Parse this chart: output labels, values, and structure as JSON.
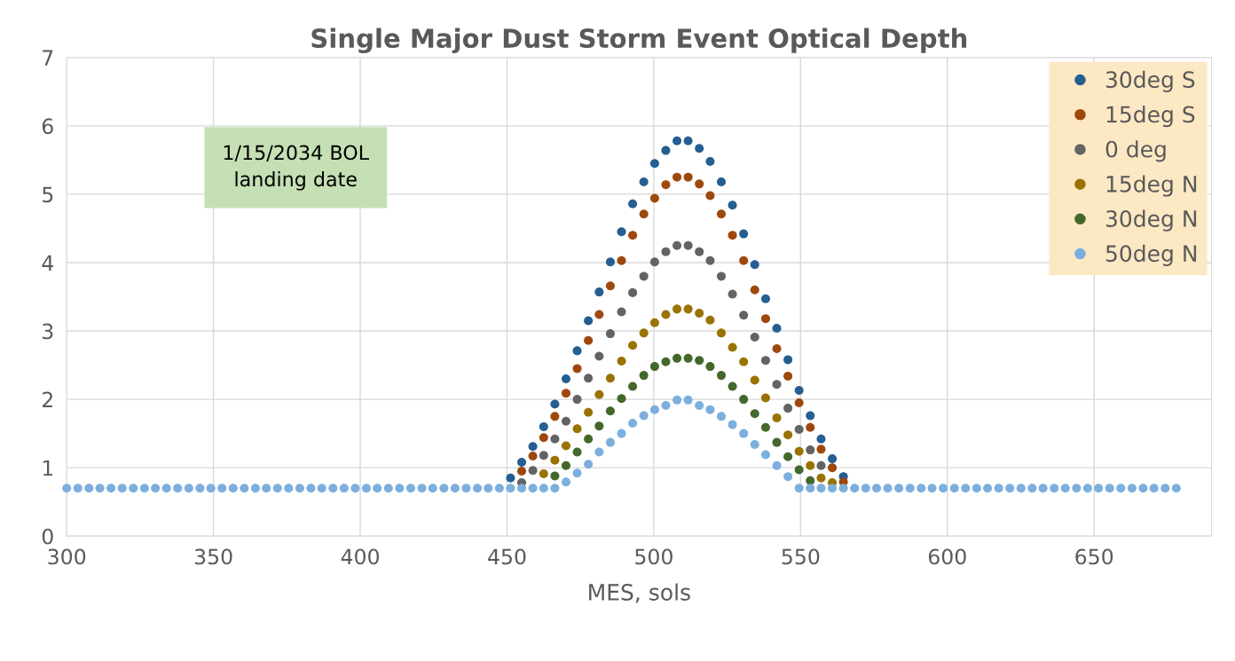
{
  "chart_data": {
    "type": "scatter",
    "title": "Single Major Dust Storm Event Optical Depth",
    "xlabel": "MES, sols",
    "annotations": [
      "1/15/2034 BOL\nlanding date"
    ],
    "x": [
      300,
      303.8,
      307.6,
      311.3,
      315.1,
      318.9,
      322.7,
      326.5,
      330.2,
      334,
      337.8,
      341.6,
      345.4,
      349.1,
      352.9,
      356.7,
      360.5,
      364.3,
      368,
      371.8,
      375.6,
      379.4,
      383.2,
      386.9,
      390.7,
      394.5,
      398.3,
      402.1,
      405.8,
      409.6,
      413.4,
      417.2,
      421,
      424.7,
      428.5,
      432.3,
      436.1,
      439.9,
      443.6,
      447.4,
      451.2,
      455,
      458.8,
      462.5,
      466.3,
      470.1,
      473.9,
      477.7,
      481.4,
      485.2,
      489,
      492.8,
      496.6,
      500.3,
      504.1,
      507.9,
      511.7,
      515.5,
      519.2,
      523,
      526.8,
      530.6,
      534.4,
      538.1,
      541.9,
      545.7,
      549.5,
      553.3,
      557,
      560.8,
      564.6,
      568.4,
      572.2,
      575.9,
      579.7,
      583.5,
      587.3,
      591.1,
      594.8,
      598.6,
      602.4,
      606.2,
      610,
      613.7,
      617.5,
      621.3,
      625.1,
      628.9,
      632.6,
      636.4,
      640.2,
      644,
      647.8,
      651.5,
      655.3,
      659.1,
      662.9,
      666.7,
      670.4,
      674.2,
      678
    ],
    "series": [
      {
        "name": "30deg S",
        "color": "#255e91",
        "values": [
          null,
          null,
          null,
          null,
          null,
          null,
          null,
          null,
          null,
          null,
          null,
          null,
          null,
          null,
          null,
          null,
          null,
          null,
          null,
          null,
          null,
          null,
          null,
          null,
          null,
          null,
          null,
          null,
          null,
          null,
          null,
          null,
          null,
          null,
          null,
          null,
          null,
          null,
          null,
          null,
          0.85,
          1.08,
          1.31,
          1.6,
          1.93,
          2.3,
          2.71,
          3.15,
          3.57,
          4.01,
          4.45,
          4.86,
          5.18,
          5.45,
          5.64,
          5.78,
          5.78,
          5.67,
          5.48,
          5.18,
          4.84,
          4.42,
          3.97,
          3.47,
          3.04,
          2.58,
          2.13,
          1.76,
          1.42,
          1.13,
          0.87,
          null,
          null,
          null,
          null,
          null,
          null,
          null,
          null,
          null,
          null,
          null,
          null,
          null,
          null,
          null,
          null,
          null,
          null,
          null,
          null,
          null,
          null,
          null,
          null,
          null,
          null,
          null,
          null,
          null,
          null
        ]
      },
      {
        "name": "15deg S",
        "color": "#9e480e",
        "values": [
          null,
          null,
          null,
          null,
          null,
          null,
          null,
          null,
          null,
          null,
          null,
          null,
          null,
          null,
          null,
          null,
          null,
          null,
          null,
          null,
          null,
          null,
          null,
          null,
          null,
          null,
          null,
          null,
          null,
          null,
          null,
          null,
          null,
          null,
          null,
          null,
          null,
          null,
          null,
          null,
          null,
          0.95,
          1.17,
          1.44,
          1.75,
          2.09,
          2.45,
          2.86,
          3.24,
          3.66,
          4.03,
          4.4,
          4.71,
          4.94,
          5.14,
          5.25,
          5.25,
          5.15,
          4.98,
          4.71,
          4.4,
          4.03,
          3.6,
          3.18,
          2.74,
          2.34,
          1.95,
          1.59,
          1.27,
          1.0,
          0.79,
          null,
          null,
          null,
          null,
          null,
          null,
          null,
          null,
          null,
          null,
          null,
          null,
          null,
          null,
          null,
          null,
          null,
          null,
          null,
          null,
          null,
          null,
          null,
          null,
          null,
          null,
          null,
          null,
          null,
          null
        ]
      },
      {
        "name": "0 deg",
        "color": "#636363",
        "values": [
          null,
          null,
          null,
          null,
          null,
          null,
          null,
          null,
          null,
          null,
          null,
          null,
          null,
          null,
          null,
          null,
          null,
          null,
          null,
          null,
          null,
          null,
          null,
          null,
          null,
          null,
          null,
          null,
          null,
          null,
          null,
          null,
          null,
          null,
          null,
          null,
          null,
          null,
          null,
          null,
          null,
          0.78,
          0.96,
          1.18,
          1.42,
          1.68,
          2.0,
          2.31,
          2.63,
          2.96,
          3.28,
          3.56,
          3.8,
          4.01,
          4.16,
          4.25,
          4.25,
          4.16,
          4.03,
          3.8,
          3.54,
          3.23,
          2.91,
          2.57,
          2.22,
          1.87,
          1.56,
          1.26,
          1.03,
          null,
          null,
          null,
          null,
          null,
          null,
          null,
          null,
          null,
          null,
          null,
          null,
          null,
          null,
          null,
          null,
          null,
          null,
          null,
          null,
          null,
          null,
          null,
          null,
          null,
          null,
          null,
          null,
          null,
          null,
          null,
          null
        ]
      },
      {
        "name": "15deg N",
        "color": "#997300",
        "values": [
          null,
          null,
          null,
          null,
          null,
          null,
          null,
          null,
          null,
          null,
          null,
          null,
          null,
          null,
          null,
          null,
          null,
          null,
          null,
          null,
          null,
          null,
          null,
          null,
          null,
          null,
          null,
          null,
          null,
          null,
          null,
          null,
          null,
          null,
          null,
          null,
          null,
          null,
          null,
          null,
          null,
          null,
          null,
          0.91,
          1.11,
          1.32,
          1.57,
          1.81,
          2.07,
          2.31,
          2.56,
          2.79,
          2.97,
          3.12,
          3.24,
          3.32,
          3.32,
          3.26,
          3.16,
          2.97,
          2.76,
          2.55,
          2.28,
          2.02,
          1.73,
          1.48,
          1.24,
          1.03,
          0.85,
          0.78,
          null,
          null,
          null,
          null,
          null,
          null,
          null,
          null,
          null,
          null,
          null,
          null,
          null,
          null,
          null,
          null,
          null,
          null,
          null,
          null,
          null,
          null,
          null,
          null,
          null,
          null,
          null,
          null,
          null,
          null,
          null
        ]
      },
      {
        "name": "30deg N",
        "color": "#43682b",
        "values": [
          null,
          null,
          null,
          null,
          null,
          null,
          null,
          null,
          null,
          null,
          null,
          null,
          null,
          null,
          null,
          null,
          null,
          null,
          null,
          null,
          null,
          null,
          null,
          null,
          null,
          null,
          null,
          null,
          null,
          null,
          null,
          null,
          null,
          null,
          null,
          null,
          null,
          null,
          null,
          null,
          null,
          null,
          null,
          null,
          0.88,
          1.03,
          1.23,
          1.42,
          1.61,
          1.83,
          2.01,
          2.19,
          2.35,
          2.48,
          2.55,
          2.6,
          2.6,
          2.57,
          2.48,
          2.35,
          2.19,
          2.0,
          1.79,
          1.59,
          1.37,
          1.16,
          0.97,
          0.81,
          null,
          null,
          null,
          null,
          null,
          null,
          null,
          null,
          null,
          null,
          null,
          null,
          null,
          null,
          null,
          null,
          null,
          null,
          null,
          null,
          null,
          null,
          null,
          null,
          null,
          null,
          null,
          null,
          null,
          null,
          null,
          null,
          null
        ]
      },
      {
        "name": "50deg N",
        "color": "#7cafdd",
        "values": [
          0.7,
          0.7,
          0.7,
          0.7,
          0.7,
          0.7,
          0.7,
          0.7,
          0.7,
          0.7,
          0.7,
          0.7,
          0.7,
          0.7,
          0.7,
          0.7,
          0.7,
          0.7,
          0.7,
          0.7,
          0.7,
          0.7,
          0.7,
          0.7,
          0.7,
          0.7,
          0.7,
          0.7,
          0.7,
          0.7,
          0.7,
          0.7,
          0.7,
          0.7,
          0.7,
          0.7,
          0.7,
          0.7,
          0.7,
          0.7,
          0.7,
          0.7,
          0.7,
          0.7,
          0.7,
          0.79,
          0.92,
          1.05,
          1.23,
          1.37,
          1.5,
          1.65,
          1.76,
          1.85,
          1.91,
          1.99,
          1.99,
          1.91,
          1.85,
          1.75,
          1.63,
          1.5,
          1.34,
          1.19,
          1.03,
          0.87,
          0.7,
          0.7,
          0.7,
          0.7,
          0.7,
          0.7,
          0.7,
          0.7,
          0.7,
          0.7,
          0.7,
          0.7,
          0.7,
          0.7,
          0.7,
          0.7,
          0.7,
          0.7,
          0.7,
          0.7,
          0.7,
          0.7,
          0.7,
          0.7,
          0.7,
          0.7,
          0.7,
          0.7,
          0.7,
          0.7,
          0.7,
          0.7,
          0.7,
          0.7,
          0.7
        ]
      }
    ],
    "xlim": [
      300,
      690
    ],
    "xticks": [
      300,
      350,
      400,
      450,
      500,
      550,
      600,
      650
    ],
    "ylim": [
      0,
      7
    ],
    "yticks": [
      0,
      1,
      2,
      3,
      4,
      5,
      6,
      7
    ],
    "grid": true,
    "legend": "top right",
    "marker": "circle"
  }
}
